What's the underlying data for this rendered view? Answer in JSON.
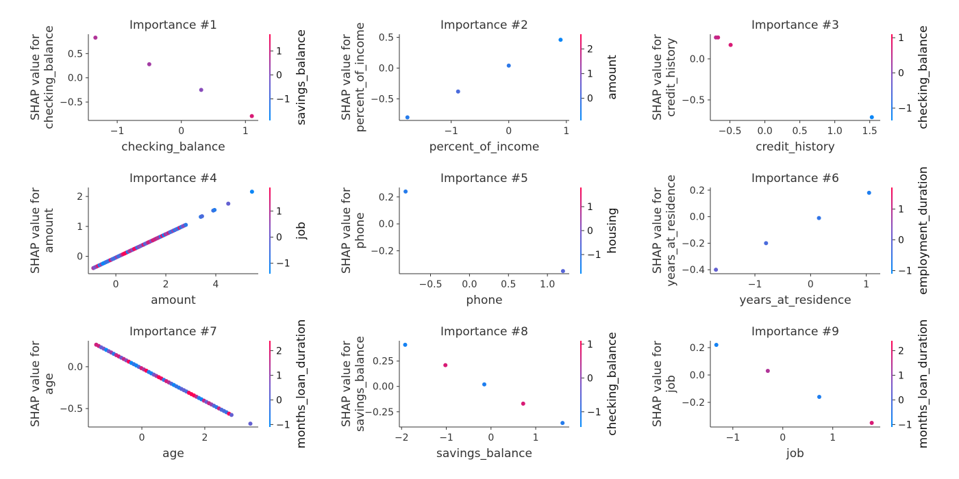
{
  "colormap": [
    "#008bfb",
    "#7c55c7",
    "#ff0052"
  ],
  "chart_data": [
    {
      "type": "scatter",
      "title": "Importance #1",
      "xlabel": "checking_balance",
      "ylabel": [
        "SHAP value for",
        "checking_balance"
      ],
      "xlim": [
        -1.45,
        1.2
      ],
      "ylim": [
        -0.88,
        0.9
      ],
      "xticks": [
        -1,
        0,
        1
      ],
      "yticks": [
        -0.5,
        0.0,
        0.5
      ],
      "points": [
        [
          -1.34,
          0.83,
          0.7
        ],
        [
          -0.5,
          0.28,
          0.65
        ],
        [
          0.31,
          -0.25,
          0.55
        ],
        [
          1.1,
          -0.79,
          0.85
        ]
      ],
      "colorbar": {
        "label": "savings_balance",
        "range": [
          -1.9,
          1.7
        ],
        "ticks": [
          -1,
          0,
          1
        ]
      }
    },
    {
      "type": "scatter",
      "title": "Importance #2",
      "xlabel": "percent_of_income",
      "ylabel": [
        "SHAP value for",
        "percent_of_income"
      ],
      "xlim": [
        -1.9,
        1.05
      ],
      "ylim": [
        -0.85,
        0.55
      ],
      "xticks": [
        -1,
        0,
        1
      ],
      "yticks": [
        -0.5,
        0.0,
        0.5
      ],
      "points": [
        [
          -1.76,
          -0.8,
          0.15
        ],
        [
          -0.88,
          -0.38,
          0.3
        ],
        [
          0.0,
          0.04,
          0.18
        ],
        [
          0.9,
          0.46,
          0.05
        ]
      ],
      "colorbar": {
        "label": "amount",
        "range": [
          -0.9,
          2.6
        ],
        "ticks": [
          0,
          1,
          2
        ]
      }
    },
    {
      "type": "scatter",
      "title": "Importance #3",
      "xlabel": "credit_history",
      "ylabel": [
        "SHAP value for",
        "credit_history"
      ],
      "xlim": [
        -0.78,
        1.65
      ],
      "ylim": [
        -0.75,
        0.3
      ],
      "xticks": [
        -0.5,
        0.0,
        0.5,
        1.0,
        1.5
      ],
      "yticks": [
        -0.5,
        0.0
      ],
      "points": [
        [
          -0.7,
          0.26,
          0.75
        ],
        [
          -0.67,
          0.26,
          0.8
        ],
        [
          -0.49,
          0.17,
          0.85
        ],
        [
          1.53,
          -0.71,
          0.05
        ]
      ],
      "colorbar": {
        "label": "checking_balance",
        "range": [
          -1.35,
          1.1
        ],
        "ticks": [
          -1,
          0,
          1
        ]
      }
    },
    {
      "type": "scatter",
      "title": "Importance #4",
      "xlabel": "amount",
      "ylabel": [
        "SHAP value for",
        "amount"
      ],
      "xlim": [
        -1.1,
        5.7
      ],
      "ylim": [
        -0.58,
        2.3
      ],
      "xticks": [
        0,
        2,
        4
      ],
      "yticks": [
        0,
        1,
        2
      ],
      "line": {
        "x": [
          -0.9,
          2.8
        ],
        "slope": 0.39,
        "intercept": -0.04,
        "n": 60
      },
      "points": [
        [
          3.4,
          1.32,
          0.2
        ],
        [
          3.45,
          1.34,
          0.3
        ],
        [
          3.9,
          1.53,
          0.25
        ],
        [
          3.95,
          1.55,
          0.15
        ],
        [
          4.5,
          1.76,
          0.4
        ],
        [
          5.45,
          2.16,
          0.05
        ]
      ],
      "colorbar": {
        "label": "job",
        "range": [
          -1.4,
          1.9
        ],
        "ticks": [
          -1,
          0,
          1
        ]
      }
    },
    {
      "type": "scatter",
      "title": "Importance #5",
      "xlabel": "phone",
      "ylabel": [
        "SHAP value for",
        "phone"
      ],
      "xlim": [
        -0.9,
        1.28
      ],
      "ylim": [
        -0.37,
        0.27
      ],
      "xticks": [
        -0.5,
        0.0,
        0.5,
        1.0
      ],
      "yticks": [
        -0.2,
        0.0,
        0.2
      ],
      "points": [
        [
          -0.82,
          0.24,
          0.15
        ],
        [
          1.2,
          -0.35,
          0.35
        ]
      ],
      "colorbar": {
        "label": "housing",
        "range": [
          -1.8,
          1.8
        ],
        "ticks": [
          -1,
          0,
          1
        ]
      }
    },
    {
      "type": "scatter",
      "title": "Importance #6",
      "xlabel": "years_at_residence",
      "ylabel": [
        "SHAP value for",
        "years_at_residence"
      ],
      "xlim": [
        -1.8,
        1.25
      ],
      "ylim": [
        -0.43,
        0.22
      ],
      "xticks": [
        -1,
        0,
        1
      ],
      "yticks": [
        -0.4,
        -0.2,
        0.0,
        0.2
      ],
      "points": [
        [
          -1.7,
          -0.4,
          0.4
        ],
        [
          -0.8,
          -0.2,
          0.3
        ],
        [
          0.15,
          -0.01,
          0.2
        ],
        [
          1.05,
          0.18,
          0.12
        ]
      ],
      "colorbar": {
        "label": "employment_duration",
        "range": [
          -1.1,
          1.7
        ],
        "ticks": [
          -1,
          0,
          1
        ]
      }
    },
    {
      "type": "scatter",
      "title": "Importance #7",
      "xlabel": "age",
      "ylabel": [
        "SHAP value for",
        "age"
      ],
      "xlim": [
        -1.7,
        3.7
      ],
      "ylim": [
        -0.72,
        0.31
      ],
      "xticks": [
        0,
        2
      ],
      "yticks": [
        -0.5,
        0.0
      ],
      "line": {
        "x": [
          -1.45,
          2.85
        ],
        "slope": -0.195,
        "intercept": -0.02,
        "n": 55
      },
      "points": [
        [
          3.45,
          -0.68,
          0.4
        ]
      ],
      "colorbar": {
        "label": "months_loan_duration",
        "range": [
          -1.1,
          2.4
        ],
        "ticks": [
          -1,
          0,
          1,
          2
        ]
      }
    },
    {
      "type": "scatter",
      "title": "Importance #8",
      "xlabel": "savings_balance",
      "ylabel": [
        "SHAP value for",
        "savings_balance"
      ],
      "xlim": [
        -2.05,
        1.75
      ],
      "ylim": [
        -0.4,
        0.45
      ],
      "xticks": [
        -2,
        -1,
        0,
        1
      ],
      "yticks": [
        -0.25,
        0.0,
        0.25
      ],
      "points": [
        [
          -1.92,
          0.41,
          0.08
        ],
        [
          -1.02,
          0.21,
          0.85
        ],
        [
          -0.15,
          0.02,
          0.12
        ],
        [
          0.72,
          -0.17,
          0.85
        ],
        [
          1.6,
          -0.36,
          0.15
        ]
      ],
      "colorbar": {
        "label": "checking_balance",
        "range": [
          -1.45,
          1.1
        ],
        "ticks": [
          -1,
          0,
          1
        ]
      }
    },
    {
      "type": "scatter",
      "title": "Importance #9",
      "xlabel": "job",
      "ylabel": [
        "SHAP value for",
        "job"
      ],
      "xlim": [
        -1.45,
        1.95
      ],
      "ylim": [
        -0.38,
        0.25
      ],
      "xticks": [
        -1,
        0,
        1
      ],
      "yticks": [
        -0.2,
        0.0,
        0.2
      ],
      "points": [
        [
          -1.33,
          0.22,
          0.08
        ],
        [
          -0.3,
          0.03,
          0.7
        ],
        [
          0.73,
          -0.16,
          0.12
        ],
        [
          1.78,
          -0.35,
          0.85
        ]
      ],
      "colorbar": {
        "label": "months_loan_duration",
        "range": [
          -1.1,
          2.4
        ],
        "ticks": [
          -1,
          0,
          1,
          2
        ]
      }
    }
  ]
}
